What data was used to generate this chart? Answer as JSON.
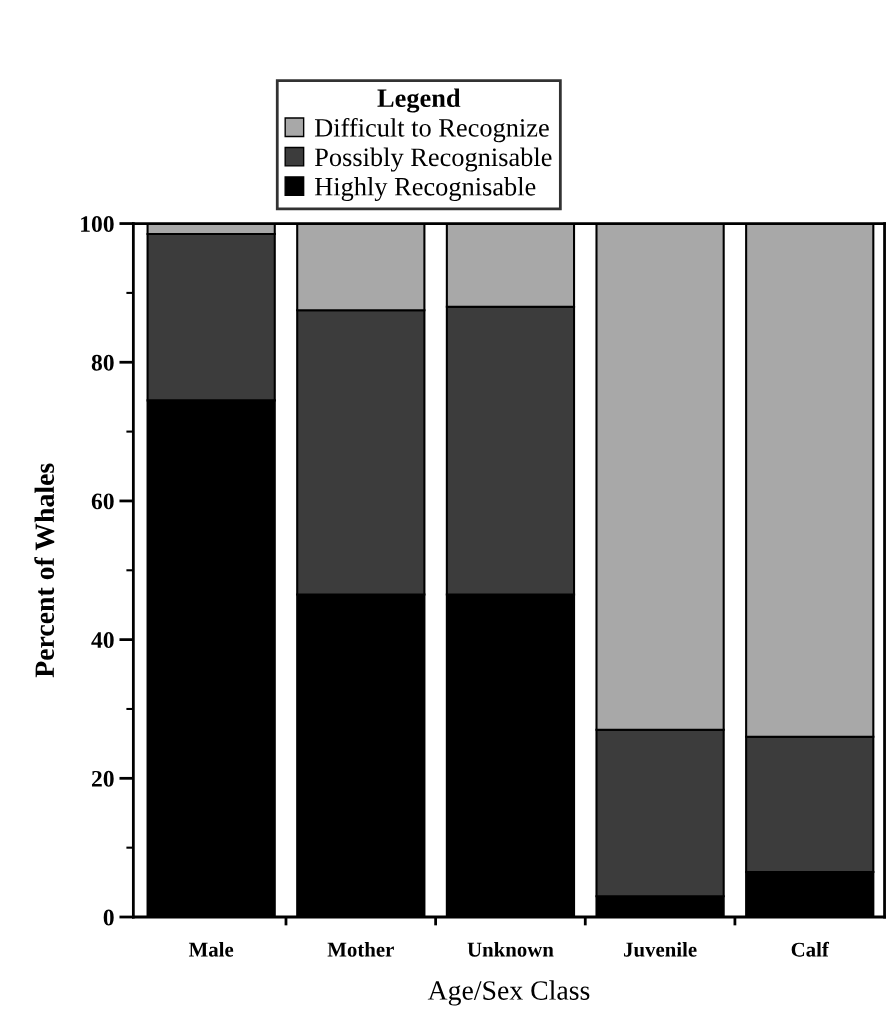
{
  "chart_data": {
    "type": "bar",
    "stacked": true,
    "xlabel": "Age/Sex Class",
    "ylabel": "Percent of Whales",
    "legend_title": "Legend",
    "categories": [
      "Male",
      "Mother",
      "Unknown",
      "Juvenile",
      "Calf"
    ],
    "series": [
      {
        "name": "Highly Recognisable",
        "color": "#000000",
        "values": [
          74.5,
          46.5,
          46.5,
          3,
          6.5
        ]
      },
      {
        "name": "Possibly Recognisable",
        "color": "#3c3c3c",
        "values": [
          24,
          41,
          41.5,
          24,
          19.5
        ]
      },
      {
        "name": "Difficult to Recognize",
        "color": "#a8a8a8",
        "values": [
          1.5,
          12.5,
          12,
          73,
          74
        ]
      }
    ],
    "ylim": [
      0,
      100
    ],
    "yticks": [
      0,
      20,
      40,
      60,
      80,
      100
    ],
    "grid": false,
    "legend": "top"
  }
}
